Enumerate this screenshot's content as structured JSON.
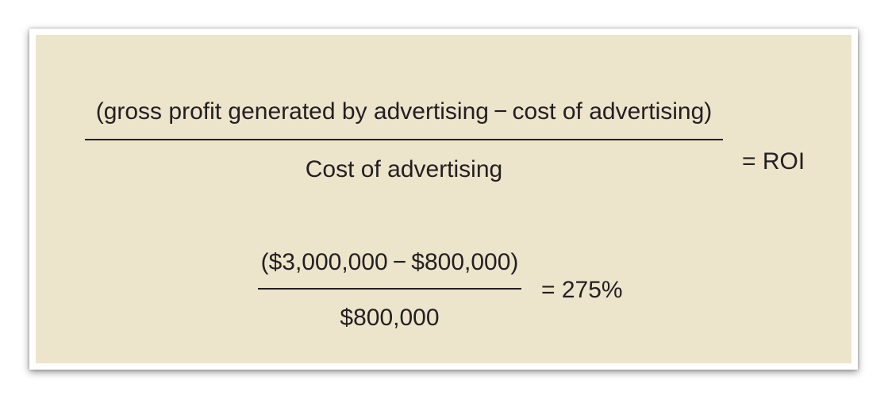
{
  "colors": {
    "panel_background": "#ede4cc",
    "text": "#231f20"
  },
  "formula_general": {
    "numerator": "(gross profit generated by advertising − cost of advertising)",
    "denominator": "Cost of advertising",
    "result": "= ROI"
  },
  "formula_example": {
    "numerator": "($3,000,000 − $800,000)",
    "denominator": "$800,000",
    "result": "= 275%"
  }
}
